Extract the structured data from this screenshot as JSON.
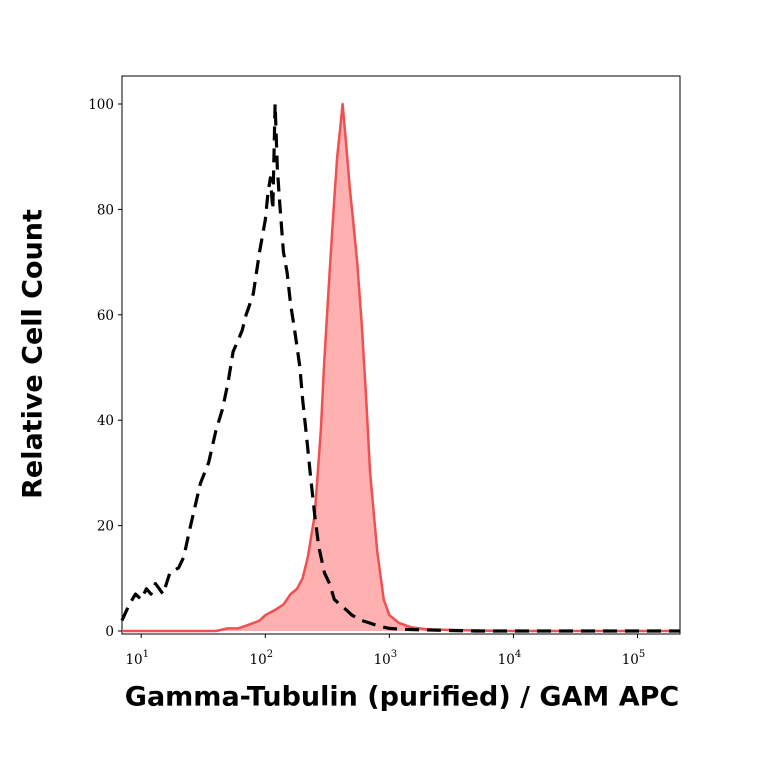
{
  "chart_data": {
    "type": "area",
    "title": "",
    "xlabel": "Gamma-Tubulin (purified) / GAM APC",
    "ylabel": "Relative Cell Count",
    "x_scale": "log",
    "xlim": [
      7,
      220000
    ],
    "ylim": [
      0,
      103
    ],
    "y_ticks": [
      "0",
      "20",
      "40",
      "60",
      "80",
      "100"
    ],
    "x_ticks": [
      {
        "base": "10",
        "exp": "1",
        "value": 10
      },
      {
        "base": "10",
        "exp": "2",
        "value": 100
      },
      {
        "base": "10",
        "exp": "3",
        "value": 1000
      },
      {
        "base": "10",
        "exp": "4",
        "value": 10000
      },
      {
        "base": "10",
        "exp": "5",
        "value": 100000
      }
    ],
    "grid": false,
    "legend": "none",
    "series": [
      {
        "style": "dashed-line",
        "color": "#000000",
        "x": [
          7,
          8,
          9,
          10,
          11,
          12,
          13,
          14,
          15,
          17,
          20,
          22,
          25,
          30,
          35,
          40,
          45,
          50,
          55,
          60,
          65,
          70,
          75,
          80,
          90,
          100,
          105,
          110,
          115,
          120,
          125,
          130,
          140,
          150,
          160,
          170,
          180,
          190,
          200,
          215,
          230,
          250,
          270,
          300,
          330,
          360,
          400,
          450,
          500,
          600,
          700,
          800,
          1000,
          1300,
          2000,
          3000,
          5000,
          10000,
          30000,
          100000,
          220000
        ],
        "y": [
          2,
          5,
          7,
          6,
          8,
          7,
          9,
          8,
          7,
          11,
          12,
          14,
          20,
          28,
          32,
          38,
          42,
          47,
          53,
          55,
          57,
          60,
          62,
          64,
          72,
          78,
          83,
          86,
          80,
          100,
          88,
          82,
          72,
          68,
          62,
          58,
          54,
          50,
          44,
          37,
          30,
          22,
          16,
          11,
          9,
          6,
          5,
          4,
          3,
          2,
          1.5,
          1,
          0.5,
          0.3,
          0.2,
          0.1,
          0,
          0,
          0,
          0,
          0
        ]
      },
      {
        "style": "filled-area",
        "color": "#f05050",
        "fill": "#ffb0b0",
        "x": [
          7,
          10,
          20,
          30,
          40,
          50,
          60,
          70,
          80,
          90,
          100,
          120,
          140,
          160,
          180,
          200,
          220,
          250,
          280,
          300,
          330,
          360,
          380,
          400,
          420,
          450,
          480,
          500,
          550,
          600,
          650,
          700,
          800,
          900,
          1000,
          1200,
          1500,
          2000,
          3000,
          5000,
          10000,
          100000,
          220000
        ],
        "y": [
          0,
          0,
          0,
          0,
          0,
          0.5,
          0.5,
          1,
          1.5,
          2,
          3,
          4,
          5,
          7,
          8,
          10,
          14,
          22,
          38,
          52,
          68,
          82,
          90,
          95,
          100,
          92,
          84,
          80,
          70,
          58,
          44,
          30,
          15,
          6,
          3,
          1.5,
          0.7,
          0.3,
          0.2,
          0.1,
          0,
          0,
          0
        ]
      }
    ]
  }
}
